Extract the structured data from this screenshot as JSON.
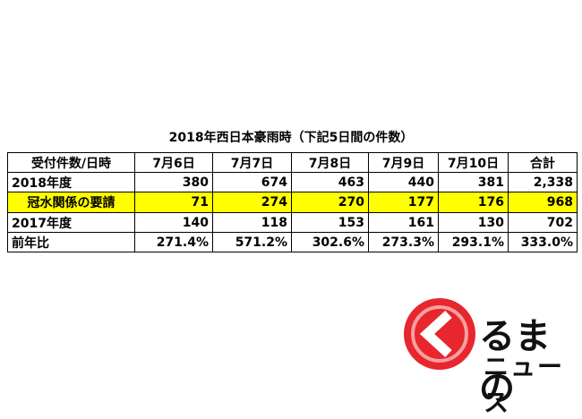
{
  "title": "2018年西日本豪雨時（下記5日間の件数）",
  "table": {
    "header": [
      "受付件数/日時",
      "7月6日",
      "7月7日",
      "7月8日",
      "7月9日",
      "7月10日",
      "合計"
    ],
    "rows": [
      [
        "2018年度",
        "380",
        "674",
        "463",
        "440",
        "381",
        "2,338"
      ],
      [
        "冠水関係の要請",
        "71",
        "274",
        "270",
        "177",
        "176",
        "968"
      ],
      [
        "2017年度",
        "140",
        "118",
        "153",
        "161",
        "130",
        "702"
      ],
      [
        "前年比",
        "271.4%",
        "571.2%",
        "302.6%",
        "273.3%",
        "293.1%",
        "333.0%"
      ]
    ]
  },
  "logo": {
    "line1": "るまの",
    "line2": "ニュース"
  }
}
